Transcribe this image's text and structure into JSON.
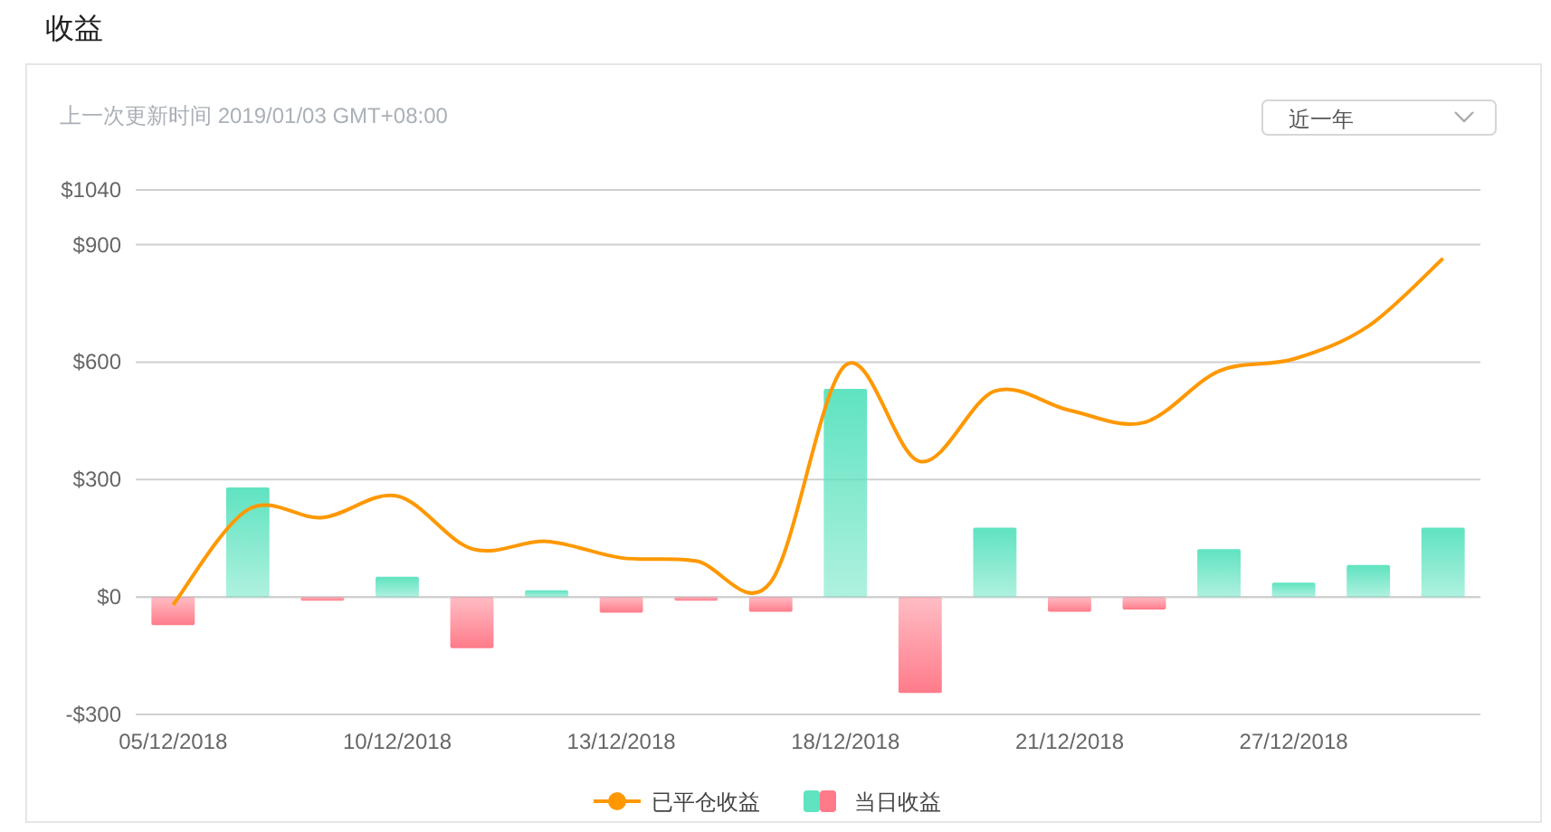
{
  "chart_data": {
    "type": "bar",
    "title": "收益",
    "annotations": [
      "上一次更新时间 2019/01/03 GMT+08:00",
      "近一年"
    ],
    "categories": [
      "05/12/2018",
      null,
      null,
      "10/12/2018",
      null,
      null,
      "13/12/2018",
      null,
      null,
      "18/12/2018",
      null,
      null,
      "21/12/2018",
      null,
      null,
      "27/12/2018",
      null,
      null
    ],
    "series": [
      {
        "name": "已平仓收益",
        "type": "line",
        "color": "#ff9800",
        "values": [
          -20,
          223,
          203,
          258,
          123,
          142,
          100,
          92,
          38,
          592,
          346,
          526,
          477,
          446,
          577,
          608,
          692,
          865
        ]
      },
      {
        "name": "当日收益",
        "colors": [
          "#ff7b8a",
          "#5fe3c0",
          "#ff7b8a",
          "#5fe3c0",
          "#ff7b8a",
          "#5fe3c0",
          "#ff7b8a",
          "#ff7b8a",
          "#ff7b8a",
          "#5fe3c0",
          "#ff7b8a",
          "#5fe3c0",
          "#ff7b8a",
          "#ff7b8a",
          "#5fe3c0",
          "#5fe3c0",
          "#5fe3c0",
          "#5fe3c0"
        ],
        "values": [
          -72,
          280,
          -3,
          52,
          -131,
          17,
          -40,
          -8,
          -38,
          532,
          -245,
          177,
          -38,
          -32,
          122,
          37,
          82,
          177
        ]
      }
    ],
    "ylim": [
      -300,
      1040
    ],
    "yticks": [
      {
        "value": -300,
        "label": "-$300"
      },
      {
        "value": 0,
        "label": "$0"
      },
      {
        "value": 300,
        "label": "$300"
      },
      {
        "value": 600,
        "label": "$600"
      },
      {
        "value": 900,
        "label": "$900"
      },
      {
        "value": 1040,
        "label": "$1040"
      }
    ],
    "grid": "y",
    "legend": "bottom"
  }
}
